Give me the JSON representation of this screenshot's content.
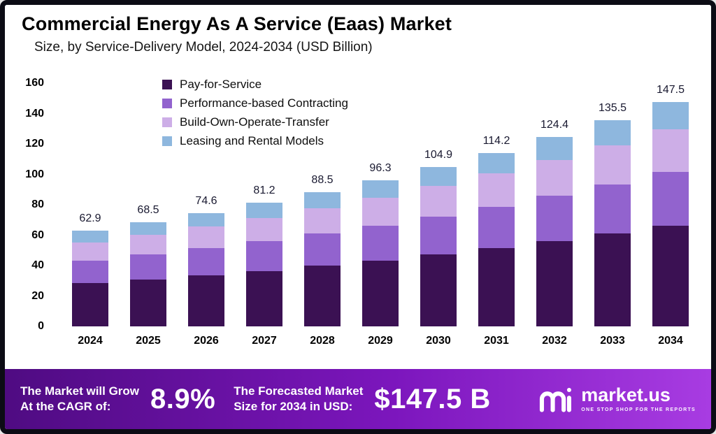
{
  "header": {
    "title": "Commercial Energy As A Service (Eaas) Market",
    "subtitle": "Size, by Service-Delivery Model, 2024-2034 (USD Billion)"
  },
  "chart_data": {
    "type": "bar",
    "stacked": true,
    "title": "Commercial Energy As A Service (Eaas) Market",
    "subtitle": "Size, by Service-Delivery Model, 2024-2034 (USD Billion)",
    "xlabel": "",
    "ylabel": "USD Billion",
    "ylim": [
      0,
      160
    ],
    "yticks": [
      0,
      20,
      40,
      60,
      80,
      100,
      120,
      140,
      160
    ],
    "grid": false,
    "legend_position": "top-left-inside",
    "categories": [
      "2024",
      "2025",
      "2026",
      "2027",
      "2028",
      "2029",
      "2030",
      "2031",
      "2032",
      "2033",
      "2034"
    ],
    "totals": [
      62.9,
      68.5,
      74.6,
      81.2,
      88.5,
      96.3,
      104.9,
      114.2,
      124.4,
      135.5,
      147.5
    ],
    "series": [
      {
        "name": "Pay-for-Service",
        "color": "#3b1153",
        "values": [
          28.3,
          30.8,
          33.6,
          36.5,
          39.8,
          43.3,
          47.2,
          51.4,
          56.0,
          61.0,
          66.4
        ]
      },
      {
        "name": "Performance-based Contracting",
        "color": "#9263ce",
        "values": [
          15.1,
          16.4,
          17.9,
          19.5,
          21.2,
          23.1,
          25.2,
          27.4,
          29.9,
          32.5,
          35.4
        ]
      },
      {
        "name": "Build-Own-Operate-Transfer",
        "color": "#cdaee7",
        "values": [
          12.0,
          13.0,
          14.2,
          15.4,
          16.8,
          18.3,
          19.9,
          21.7,
          23.6,
          25.7,
          28.0
        ]
      },
      {
        "name": "Leasing and Rental Models",
        "color": "#8eb7de",
        "values": [
          7.5,
          8.3,
          8.9,
          9.8,
          10.7,
          11.6,
          12.6,
          13.7,
          14.9,
          16.3,
          17.7
        ]
      }
    ]
  },
  "banner": {
    "gradient_from": "#4f0b82",
    "gradient_mid": "#7c16bd",
    "gradient_to": "#a83ce2",
    "cagr_label_line1": "The Market will Grow",
    "cagr_label_line2": "At the CAGR of:",
    "cagr_value": "8.9%",
    "forecast_label_line1": "The Forecasted Market",
    "forecast_label_line2": "Size for 2034 in USD:",
    "forecast_value": "$147.5 B",
    "brand": "market.us",
    "brand_tagline": "ONE STOP SHOP FOR THE REPORTS"
  }
}
